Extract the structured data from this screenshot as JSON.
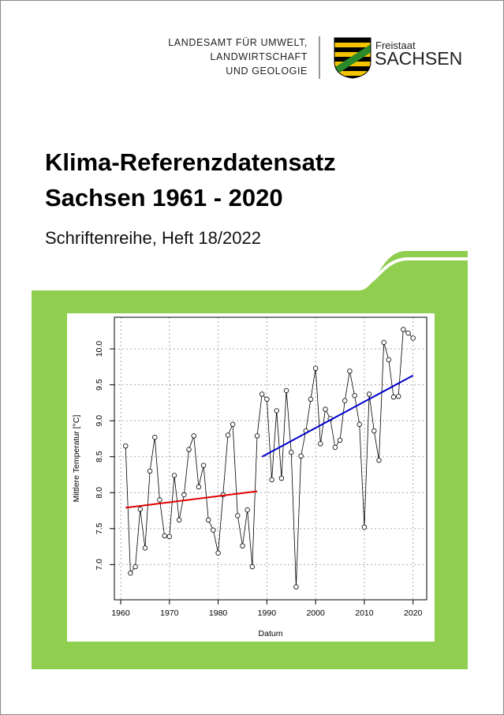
{
  "header": {
    "authority_lines": [
      "LANDESAMT FÜR UMWELT,",
      "LANDWIRTSCHAFT",
      "UND GEOLOGIE"
    ],
    "logo_small": "Freistaat",
    "logo_large": "SACHSEN"
  },
  "cover": {
    "title_lines": [
      "Klima-Referenzdatensatz",
      "Sachsen 1961 - 2020"
    ],
    "subtitle": "Schriftenreihe, Heft 18/2022"
  },
  "chart_data": {
    "type": "line",
    "x_label": "Datum",
    "y_label": "Mittlere Temperatur [°C]",
    "x": [
      1961,
      1962,
      1963,
      1964,
      1965,
      1966,
      1967,
      1968,
      1969,
      1970,
      1971,
      1972,
      1973,
      1974,
      1975,
      1976,
      1977,
      1978,
      1979,
      1980,
      1981,
      1982,
      1983,
      1984,
      1985,
      1986,
      1987,
      1988,
      1989,
      1990,
      1991,
      1992,
      1993,
      1994,
      1995,
      1996,
      1997,
      1998,
      1999,
      2000,
      2001,
      2002,
      2003,
      2004,
      2005,
      2006,
      2007,
      2008,
      2009,
      2010,
      2011,
      2012,
      2013,
      2014,
      2015,
      2016,
      2017,
      2018,
      2019,
      2020
    ],
    "values": [
      8.65,
      6.88,
      6.97,
      7.77,
      7.23,
      8.3,
      8.77,
      7.9,
      7.4,
      7.39,
      8.24,
      7.62,
      7.97,
      8.6,
      8.79,
      8.08,
      8.38,
      7.62,
      7.48,
      7.16,
      7.97,
      8.8,
      8.95,
      7.68,
      7.26,
      7.76,
      6.97,
      8.79,
      9.37,
      9.3,
      8.18,
      9.14,
      8.2,
      9.42,
      8.56,
      6.69,
      8.51,
      8.86,
      9.3,
      9.73,
      8.68,
      9.16,
      9.03,
      8.63,
      8.73,
      9.28,
      9.69,
      9.35,
      8.95,
      7.52,
      9.37,
      8.86,
      8.45,
      10.09,
      9.85,
      9.33,
      9.34,
      10.27,
      10.22,
      10.15
    ],
    "color": "#000000",
    "markers": true,
    "trend_lines": [
      {
        "x": [
          1961,
          1988
        ],
        "values": [
          7.79,
          8.02
        ],
        "color": "#e00000"
      },
      {
        "x": [
          1989,
          2020
        ],
        "values": [
          8.5,
          9.63
        ],
        "color": "#0000cc"
      }
    ],
    "xlim": [
      1958.7,
      2022.8
    ],
    "xticks": [
      1960,
      1970,
      1980,
      1990,
      2000,
      2010,
      2020
    ],
    "ylim": [
      6.51,
      10.44
    ],
    "yticks": [
      {
        "value": 7,
        "label": "7.0"
      },
      7.5,
      {
        "value": 8,
        "label": "8.0"
      },
      8.5,
      {
        "value": 9,
        "label": "9.0"
      },
      9.5,
      {
        "value": 10,
        "label": "10.0"
      }
    ],
    "grid": true
  }
}
